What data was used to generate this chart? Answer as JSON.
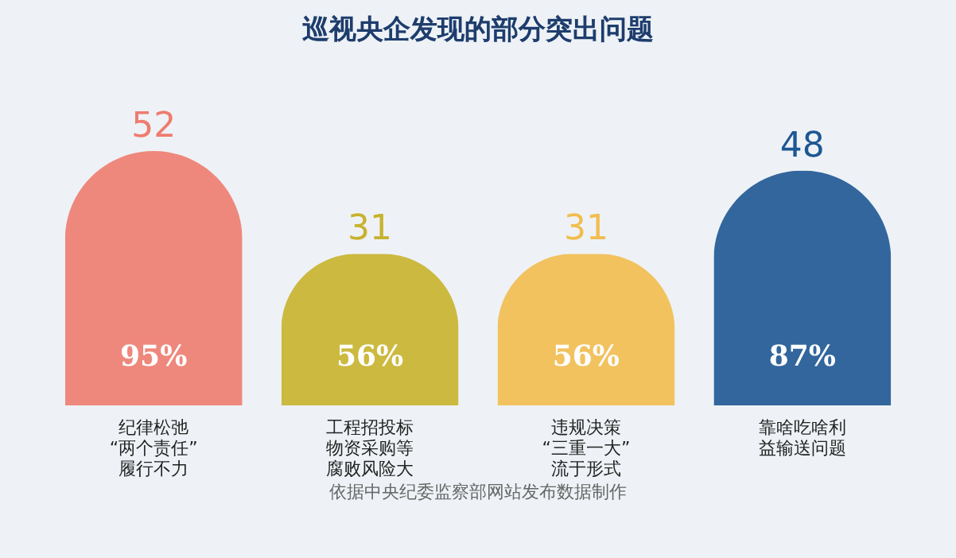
{
  "chart_data": {
    "type": "bar",
    "title": "巡视央企发现的部分突出问题",
    "categories": [
      "纪律松弛“两个责任”履行不力",
      "工程招投标物资采购等腐败风险大",
      "违规决策“三重一大”流于形式",
      "靠啥吃啥利益输送问题"
    ],
    "values": [
      52,
      31,
      31,
      48
    ],
    "colors": [
      "#ee7c6f",
      "#c8b22c",
      "#f2bd4f",
      "#1d5794"
    ],
    "data_labels": true,
    "annotations": [
      "95%",
      "56%",
      "56%",
      "87%",
      "依据中央纪委监察部网站发布数据制作"
    ]
  }
}
